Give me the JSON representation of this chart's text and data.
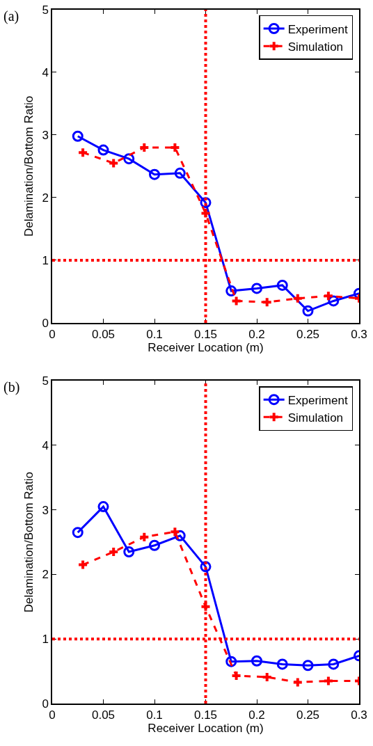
{
  "chart_data": [
    {
      "type": "line",
      "title": "(a)",
      "xlabel": "Receiver Location (m)",
      "ylabel": "Delamination/Bottom Ratio",
      "xlim": [
        0,
        0.3
      ],
      "ylim": [
        0,
        5
      ],
      "xticks": [
        0,
        0.05,
        0.1,
        0.15,
        0.2,
        0.25,
        0.3
      ],
      "yticks": [
        0,
        1,
        2,
        3,
        4,
        5
      ],
      "legend": "top right",
      "series": [
        {
          "name": "Experiment",
          "color": "#0000ff",
          "marker": "circle",
          "line_style": "solid",
          "x": [
            0.025,
            0.05,
            0.075,
            0.1,
            0.125,
            0.15,
            0.175,
            0.2,
            0.225,
            0.25,
            0.275,
            0.3
          ],
          "values": [
            2.98,
            2.76,
            2.62,
            2.37,
            2.39,
            1.92,
            0.51,
            0.55,
            0.6,
            0.19,
            0.35,
            0.47
          ]
        },
        {
          "name": "Simulation",
          "color": "#ff0000",
          "marker": "cross",
          "line_style": "dashed",
          "x": [
            0.03,
            0.06,
            0.09,
            0.12,
            0.15,
            0.18,
            0.21,
            0.24,
            0.27,
            0.3
          ],
          "values": [
            2.72,
            2.55,
            2.8,
            2.8,
            1.75,
            0.35,
            0.33,
            0.39,
            0.43,
            0.39
          ]
        }
      ],
      "ref_lines": [
        {
          "axis": "y",
          "value": 1,
          "color": "#ff0000",
          "line_style": "dotted"
        },
        {
          "axis": "x",
          "value": 0.15,
          "color": "#ff0000",
          "line_style": "dotted"
        }
      ]
    },
    {
      "type": "line",
      "title": "(b)",
      "xlabel": "Receiver Location (m)",
      "ylabel": "Delamination/Bottom Ratio",
      "xlim": [
        0,
        0.3
      ],
      "ylim": [
        0,
        5
      ],
      "xticks": [
        0,
        0.05,
        0.1,
        0.15,
        0.2,
        0.25,
        0.3
      ],
      "yticks": [
        0,
        1,
        2,
        3,
        4,
        5
      ],
      "legend": "top right",
      "series": [
        {
          "name": "Experiment",
          "color": "#0000ff",
          "marker": "circle",
          "line_style": "solid",
          "x": [
            0.025,
            0.05,
            0.075,
            0.1,
            0.125,
            0.15,
            0.175,
            0.2,
            0.225,
            0.25,
            0.275,
            0.3
          ],
          "values": [
            2.65,
            3.05,
            2.35,
            2.45,
            2.6,
            2.12,
            0.65,
            0.66,
            0.61,
            0.59,
            0.61,
            0.74
          ]
        },
        {
          "name": "Simulation",
          "color": "#ff0000",
          "marker": "cross",
          "line_style": "dashed",
          "x": [
            0.03,
            0.06,
            0.09,
            0.12,
            0.15,
            0.18,
            0.21,
            0.24,
            0.27,
            0.3
          ],
          "values": [
            2.15,
            2.35,
            2.58,
            2.66,
            1.5,
            0.43,
            0.41,
            0.33,
            0.35,
            0.35
          ]
        }
      ],
      "ref_lines": [
        {
          "axis": "y",
          "value": 1,
          "color": "#ff0000",
          "line_style": "dotted"
        },
        {
          "axis": "x",
          "value": 0.15,
          "color": "#ff0000",
          "line_style": "dotted"
        }
      ]
    }
  ]
}
